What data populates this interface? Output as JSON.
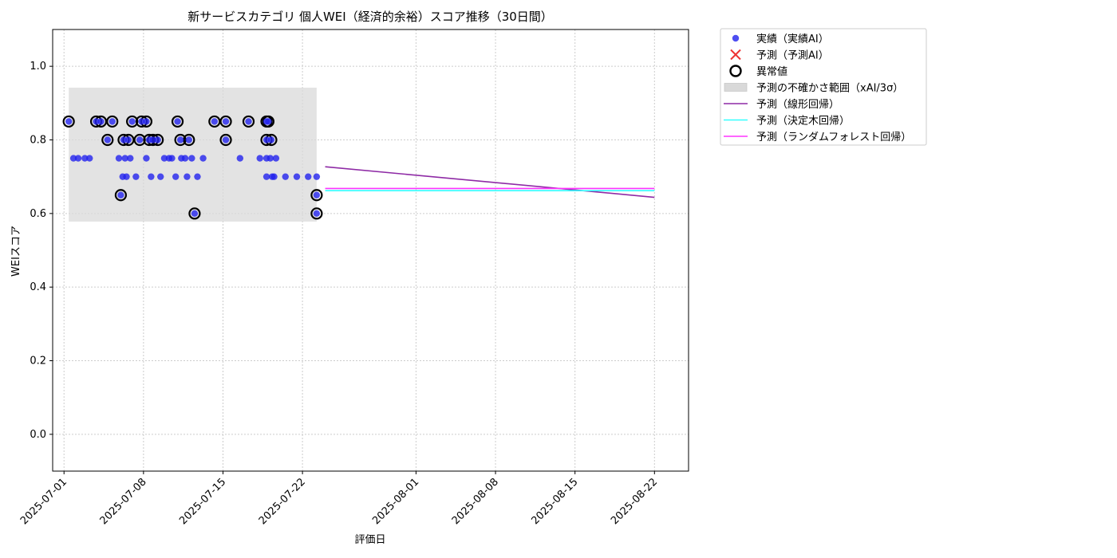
{
  "chart_data": {
    "type": "scatter",
    "title": "新サービスカテゴリ 個人WEI（経済的余裕）スコア推移（30日間）",
    "xlabel": "評価日",
    "ylabel": "WEIスコア",
    "xlim": [
      "2025-06-30",
      "2025-08-25"
    ],
    "ylim": [
      -0.1,
      1.1
    ],
    "yticks": [
      0.0,
      0.2,
      0.4,
      0.6,
      0.8,
      1.0
    ],
    "xticks": [
      "2025-07-01",
      "2025-07-08",
      "2025-07-15",
      "2025-07-22",
      "2025-08-01",
      "2025-08-08",
      "2025-08-15",
      "2025-08-22"
    ],
    "grid": true,
    "legend_position": "outside-top-right",
    "colors": {
      "actual": "#2222ee",
      "anomaly": "#000000",
      "band": "#d9d9d9",
      "linear": "#8e2aa5",
      "tree": "#33ffff",
      "forest": "#ff33ff",
      "predicted": "#ee3333"
    },
    "legend": [
      {
        "key": "actual",
        "label": "実績（実績AI）",
        "marker": "dot"
      },
      {
        "key": "predicted",
        "label": "予測（予測AI）",
        "marker": "x"
      },
      {
        "key": "anomaly",
        "label": "異常値",
        "marker": "ring"
      },
      {
        "key": "band",
        "label": "予測の不確かさ範囲（xAI/3σ）",
        "marker": "rect"
      },
      {
        "key": "linear",
        "label": "予測（線形回帰）",
        "marker": "line"
      },
      {
        "key": "tree",
        "label": "予測（決定木回帰）",
        "marker": "line"
      },
      {
        "key": "forest",
        "label": "予測（ランダムフォレスト回帰）",
        "marker": "line"
      }
    ],
    "actual": [
      {
        "x": "2025-07-01T10:00",
        "y": 0.85
      },
      {
        "x": "2025-07-01T20:00",
        "y": 0.75
      },
      {
        "x": "2025-07-02T06:00",
        "y": 0.75
      },
      {
        "x": "2025-07-02T20:00",
        "y": 0.75
      },
      {
        "x": "2025-07-03T06:00",
        "y": 0.75
      },
      {
        "x": "2025-07-03T20:00",
        "y": 0.85
      },
      {
        "x": "2025-07-04T06:00",
        "y": 0.85
      },
      {
        "x": "2025-07-04T20:00",
        "y": 0.8
      },
      {
        "x": "2025-07-05T06:00",
        "y": 0.85
      },
      {
        "x": "2025-07-05T20:00",
        "y": 0.75
      },
      {
        "x": "2025-07-06T00:00",
        "y": 0.65
      },
      {
        "x": "2025-07-06T04:00",
        "y": 0.7
      },
      {
        "x": "2025-07-06T06:00",
        "y": 0.8
      },
      {
        "x": "2025-07-06T09:00",
        "y": 0.75
      },
      {
        "x": "2025-07-06T12:00",
        "y": 0.7
      },
      {
        "x": "2025-07-06T16:00",
        "y": 0.8
      },
      {
        "x": "2025-07-06T20:00",
        "y": 0.75
      },
      {
        "x": "2025-07-07T00:00",
        "y": 0.85
      },
      {
        "x": "2025-07-07T08:00",
        "y": 0.7
      },
      {
        "x": "2025-07-07T16:00",
        "y": 0.8
      },
      {
        "x": "2025-07-07T20:00",
        "y": 0.85
      },
      {
        "x": "2025-07-08T06:00",
        "y": 0.75
      },
      {
        "x": "2025-07-08T06:00",
        "y": 0.85
      },
      {
        "x": "2025-07-08T12:00",
        "y": 0.8
      },
      {
        "x": "2025-07-08T16:00",
        "y": 0.7
      },
      {
        "x": "2025-07-08T20:00",
        "y": 0.8
      },
      {
        "x": "2025-07-09T06:00",
        "y": 0.8
      },
      {
        "x": "2025-07-09T12:00",
        "y": 0.7
      },
      {
        "x": "2025-07-09T20:00",
        "y": 0.75
      },
      {
        "x": "2025-07-10T06:00",
        "y": 0.75
      },
      {
        "x": "2025-07-10T12:00",
        "y": 0.75
      },
      {
        "x": "2025-07-10T20:00",
        "y": 0.7
      },
      {
        "x": "2025-07-11T00:00",
        "y": 0.85
      },
      {
        "x": "2025-07-11T06:00",
        "y": 0.8
      },
      {
        "x": "2025-07-11T08:00",
        "y": 0.75
      },
      {
        "x": "2025-07-11T16:00",
        "y": 0.75
      },
      {
        "x": "2025-07-11T20:00",
        "y": 0.7
      },
      {
        "x": "2025-07-12T00:00",
        "y": 0.8
      },
      {
        "x": "2025-07-12T06:00",
        "y": 0.75
      },
      {
        "x": "2025-07-12T12:00",
        "y": 0.6
      },
      {
        "x": "2025-07-12T18:00",
        "y": 0.7
      },
      {
        "x": "2025-07-13T06:00",
        "y": 0.75
      },
      {
        "x": "2025-07-14T06:00",
        "y": 0.85
      },
      {
        "x": "2025-07-15T06:00",
        "y": 0.85
      },
      {
        "x": "2025-07-15T06:00",
        "y": 0.8
      },
      {
        "x": "2025-07-16T12:00",
        "y": 0.75
      },
      {
        "x": "2025-07-17T06:00",
        "y": 0.85
      },
      {
        "x": "2025-07-18T06:00",
        "y": 0.75
      },
      {
        "x": "2025-07-18T20:00",
        "y": 0.85
      },
      {
        "x": "2025-07-18T20:00",
        "y": 0.8
      },
      {
        "x": "2025-07-18T20:00",
        "y": 0.75
      },
      {
        "x": "2025-07-18T20:00",
        "y": 0.7
      },
      {
        "x": "2025-07-19T00:00",
        "y": 0.85
      },
      {
        "x": "2025-07-19T04:00",
        "y": 0.75
      },
      {
        "x": "2025-07-19T06:00",
        "y": 0.8
      },
      {
        "x": "2025-07-19T08:00",
        "y": 0.7
      },
      {
        "x": "2025-07-19T12:00",
        "y": 0.7
      },
      {
        "x": "2025-07-19T16:00",
        "y": 0.75
      },
      {
        "x": "2025-07-20T12:00",
        "y": 0.7
      },
      {
        "x": "2025-07-21T12:00",
        "y": 0.7
      },
      {
        "x": "2025-07-22T12:00",
        "y": 0.7
      },
      {
        "x": "2025-07-23T06:00",
        "y": 0.65
      },
      {
        "x": "2025-07-23T06:00",
        "y": 0.6
      },
      {
        "x": "2025-07-23T06:00",
        "y": 0.7
      }
    ],
    "anomalies": [
      {
        "x": "2025-07-01T10:00",
        "y": 0.85
      },
      {
        "x": "2025-07-03T20:00",
        "y": 0.85
      },
      {
        "x": "2025-07-04T06:00",
        "y": 0.85
      },
      {
        "x": "2025-07-04T20:00",
        "y": 0.8
      },
      {
        "x": "2025-07-05T06:00",
        "y": 0.85
      },
      {
        "x": "2025-07-06T00:00",
        "y": 0.65
      },
      {
        "x": "2025-07-06T06:00",
        "y": 0.8
      },
      {
        "x": "2025-07-06T16:00",
        "y": 0.8
      },
      {
        "x": "2025-07-07T00:00",
        "y": 0.85
      },
      {
        "x": "2025-07-07T16:00",
        "y": 0.8
      },
      {
        "x": "2025-07-07T20:00",
        "y": 0.85
      },
      {
        "x": "2025-07-08T06:00",
        "y": 0.85
      },
      {
        "x": "2025-07-08T12:00",
        "y": 0.8
      },
      {
        "x": "2025-07-08T20:00",
        "y": 0.8
      },
      {
        "x": "2025-07-09T06:00",
        "y": 0.8
      },
      {
        "x": "2025-07-11T00:00",
        "y": 0.85
      },
      {
        "x": "2025-07-11T06:00",
        "y": 0.8
      },
      {
        "x": "2025-07-12T00:00",
        "y": 0.8
      },
      {
        "x": "2025-07-12T12:00",
        "y": 0.6
      },
      {
        "x": "2025-07-14T06:00",
        "y": 0.85
      },
      {
        "x": "2025-07-15T06:00",
        "y": 0.85
      },
      {
        "x": "2025-07-15T06:00",
        "y": 0.8
      },
      {
        "x": "2025-07-17T06:00",
        "y": 0.85
      },
      {
        "x": "2025-07-18T20:00",
        "y": 0.85
      },
      {
        "x": "2025-07-18T20:00",
        "y": 0.8
      },
      {
        "x": "2025-07-19T00:00",
        "y": 0.85
      },
      {
        "x": "2025-07-19T06:00",
        "y": 0.8
      },
      {
        "x": "2025-07-23T06:00",
        "y": 0.65
      },
      {
        "x": "2025-07-23T06:00",
        "y": 0.6
      }
    ],
    "uncertainty_band": {
      "x_start": "2025-07-01T10:00",
      "x_end": "2025-07-23T06:00",
      "y_low": 0.578,
      "y_high": 0.942
    },
    "series": [
      {
        "name": "予測（線形回帰）",
        "key": "linear",
        "x": [
          "2025-07-24",
          "2025-08-22"
        ],
        "values": [
          0.727,
          0.644
        ]
      },
      {
        "name": "予測（決定木回帰）",
        "key": "tree",
        "x": [
          "2025-07-24",
          "2025-08-22"
        ],
        "values": [
          0.662,
          0.662
        ]
      },
      {
        "name": "予測（ランダムフォレスト回帰）",
        "key": "forest",
        "x": [
          "2025-07-24",
          "2025-08-22"
        ],
        "values": [
          0.668,
          0.668
        ]
      }
    ]
  }
}
